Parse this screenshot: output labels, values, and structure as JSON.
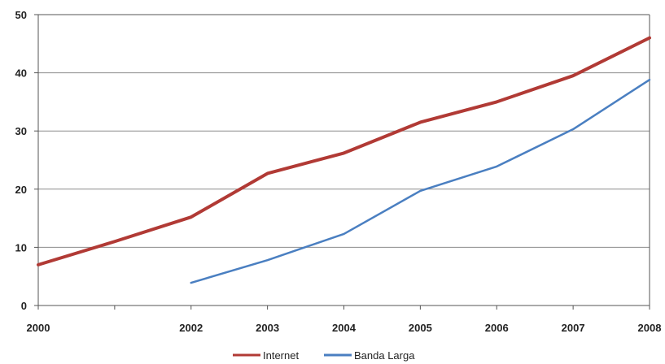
{
  "chart_data": {
    "type": "line",
    "x": [
      2000,
      2001,
      2002,
      2003,
      2004,
      2005,
      2006,
      2007,
      2008
    ],
    "x_tick_labels": [
      "2000",
      "",
      "2002",
      "2003",
      "2004",
      "2005",
      "2006",
      "2007",
      "2008"
    ],
    "ylim": [
      0,
      50
    ],
    "y_ticks": [
      0,
      10,
      20,
      30,
      40,
      50
    ],
    "grid": "horizontal",
    "legend_position": "bottom",
    "series": [
      {
        "name": "Internet",
        "color": "#b13a35",
        "values": [
          7,
          11,
          15.2,
          22.7,
          26.2,
          31.5,
          35,
          39.5,
          46
        ]
      },
      {
        "name": "Banda Larga",
        "color": "#4a7fc1",
        "values": [
          null,
          null,
          3.9,
          7.8,
          12.3,
          19.7,
          23.9,
          30.3,
          38.8
        ]
      }
    ]
  }
}
